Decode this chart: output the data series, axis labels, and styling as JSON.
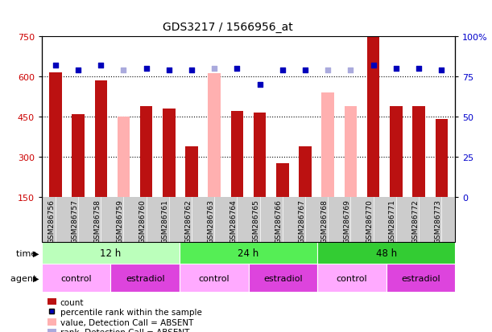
{
  "title": "GDS3217 / 1566956_at",
  "samples": [
    "GSM286756",
    "GSM286757",
    "GSM286758",
    "GSM286759",
    "GSM286760",
    "GSM286761",
    "GSM286762",
    "GSM286763",
    "GSM286764",
    "GSM286765",
    "GSM286766",
    "GSM286767",
    "GSM286768",
    "GSM286769",
    "GSM286770",
    "GSM286771",
    "GSM286772",
    "GSM286773"
  ],
  "count_values": [
    615,
    460,
    585,
    null,
    490,
    480,
    340,
    null,
    470,
    465,
    275,
    340,
    null,
    null,
    750,
    490,
    490,
    440
  ],
  "count_absent": [
    null,
    null,
    null,
    450,
    null,
    null,
    null,
    610,
    null,
    null,
    null,
    null,
    540,
    490,
    null,
    null,
    null,
    null
  ],
  "percentile_present": [
    82,
    79,
    82,
    null,
    80,
    79,
    79,
    null,
    80,
    70,
    79,
    79,
    null,
    null,
    82,
    80,
    80,
    79
  ],
  "percentile_absent": [
    null,
    null,
    null,
    79,
    null,
    null,
    null,
    80,
    null,
    null,
    null,
    null,
    79,
    79,
    null,
    null,
    null,
    null
  ],
  "ylim_left": [
    150,
    750
  ],
  "ylim_right": [
    0,
    100
  ],
  "yticks_left": [
    150,
    300,
    450,
    600,
    750
  ],
  "yticks_right": [
    0,
    25,
    50,
    75,
    100
  ],
  "ytick_labels_right": [
    "0",
    "25",
    "50",
    "75",
    "100%"
  ],
  "hlines": [
    300,
    450,
    600
  ],
  "bar_width": 0.55,
  "bar_color_present": "#BB1111",
  "bar_color_absent": "#FFB0B0",
  "dot_color_present": "#0000BB",
  "dot_color_absent": "#AAAADD",
  "bg_color": "#FFFFFF",
  "plot_bg": "#FFFFFF",
  "time_colors": [
    "#BBFFBB",
    "#55EE55",
    "#33CC33"
  ],
  "time_groups": [
    {
      "label": "12 h",
      "start": 0,
      "end": 6
    },
    {
      "label": "24 h",
      "start": 6,
      "end": 12
    },
    {
      "label": "48 h",
      "start": 12,
      "end": 18
    }
  ],
  "agent_groups": [
    {
      "label": "control",
      "start": 0,
      "end": 3
    },
    {
      "label": "estradiol",
      "start": 3,
      "end": 6
    },
    {
      "label": "control",
      "start": 6,
      "end": 9
    },
    {
      "label": "estradiol",
      "start": 9,
      "end": 12
    },
    {
      "label": "control",
      "start": 12,
      "end": 15
    },
    {
      "label": "estradiol",
      "start": 15,
      "end": 18
    }
  ],
  "agent_colors": {
    "control": "#FFAAFF",
    "estradiol": "#DD44DD"
  },
  "xticklabel_fontsize": 6.5,
  "title_fontsize": 10,
  "legend_fontsize": 7.5,
  "axis_color_left": "#CC0000",
  "axis_color_right": "#0000CC",
  "grey_bg": "#CCCCCC"
}
